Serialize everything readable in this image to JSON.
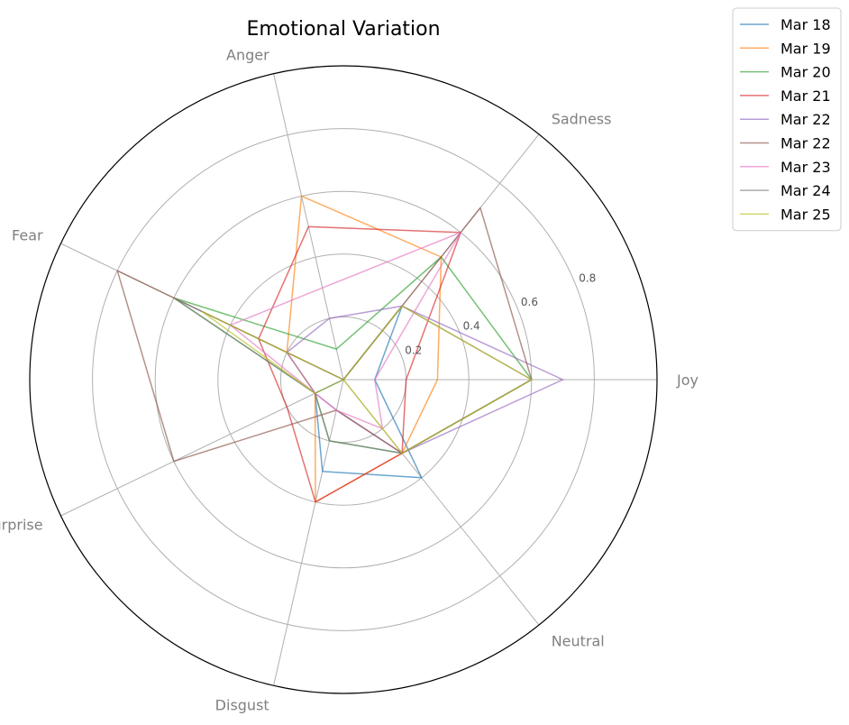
{
  "chart_data": {
    "type": "radar",
    "title": "Emotional Variation",
    "axes": [
      "Joy",
      "Sadness",
      "Anger",
      "Fear",
      "Surprise",
      "Disgust",
      "Neutral"
    ],
    "rlim": [
      0,
      1.0
    ],
    "rticks": [
      0.2,
      0.4,
      0.6,
      0.8
    ],
    "rtick_labels": [
      "0.2",
      "0.4",
      "0.6",
      "0.8"
    ],
    "grid": true,
    "legend_position": "top-right, outside",
    "series": [
      {
        "name": "Mar 18",
        "color": "#1f77b4",
        "values": [
          0.1,
          0.3,
          0.0,
          0.0,
          0.1,
          0.3,
          0.4
        ]
      },
      {
        "name": "Mar 19",
        "color": "#ff7f0e",
        "values": [
          0.3,
          0.5,
          0.6,
          0.2,
          0.1,
          0.4,
          0.3
        ]
      },
      {
        "name": "Mar 20",
        "color": "#2ca02c",
        "values": [
          0.6,
          0.5,
          0.1,
          0.6,
          0.1,
          0.2,
          0.3
        ]
      },
      {
        "name": "Mar 21",
        "color": "#d62728",
        "values": [
          0.2,
          0.6,
          0.5,
          0.3,
          0.2,
          0.4,
          0.3
        ]
      },
      {
        "name": "Mar 22",
        "color": "#9467bd",
        "values": [
          0.7,
          0.3,
          0.2,
          0.2,
          0.1,
          0.1,
          0.3
        ]
      },
      {
        "name": "Mar 22",
        "color": "#8c564b",
        "values": [
          0.6,
          0.7,
          0.0,
          0.8,
          0.6,
          0.1,
          0.3
        ]
      },
      {
        "name": "Mar 23",
        "color": "#e377c2",
        "values": [
          0.1,
          0.6,
          0.3,
          0.4,
          0.1,
          0.1,
          0.2
        ]
      },
      {
        "name": "Mar 24",
        "color": "#7f7f7f",
        "values": [
          0.6,
          0.3,
          0.0,
          0.6,
          0.1,
          0.2,
          0.3
        ]
      },
      {
        "name": "Mar 25",
        "color": "#bcbd22",
        "values": [
          0.6,
          0.3,
          0.0,
          0.5,
          0.1,
          0.0,
          0.3
        ]
      }
    ]
  }
}
